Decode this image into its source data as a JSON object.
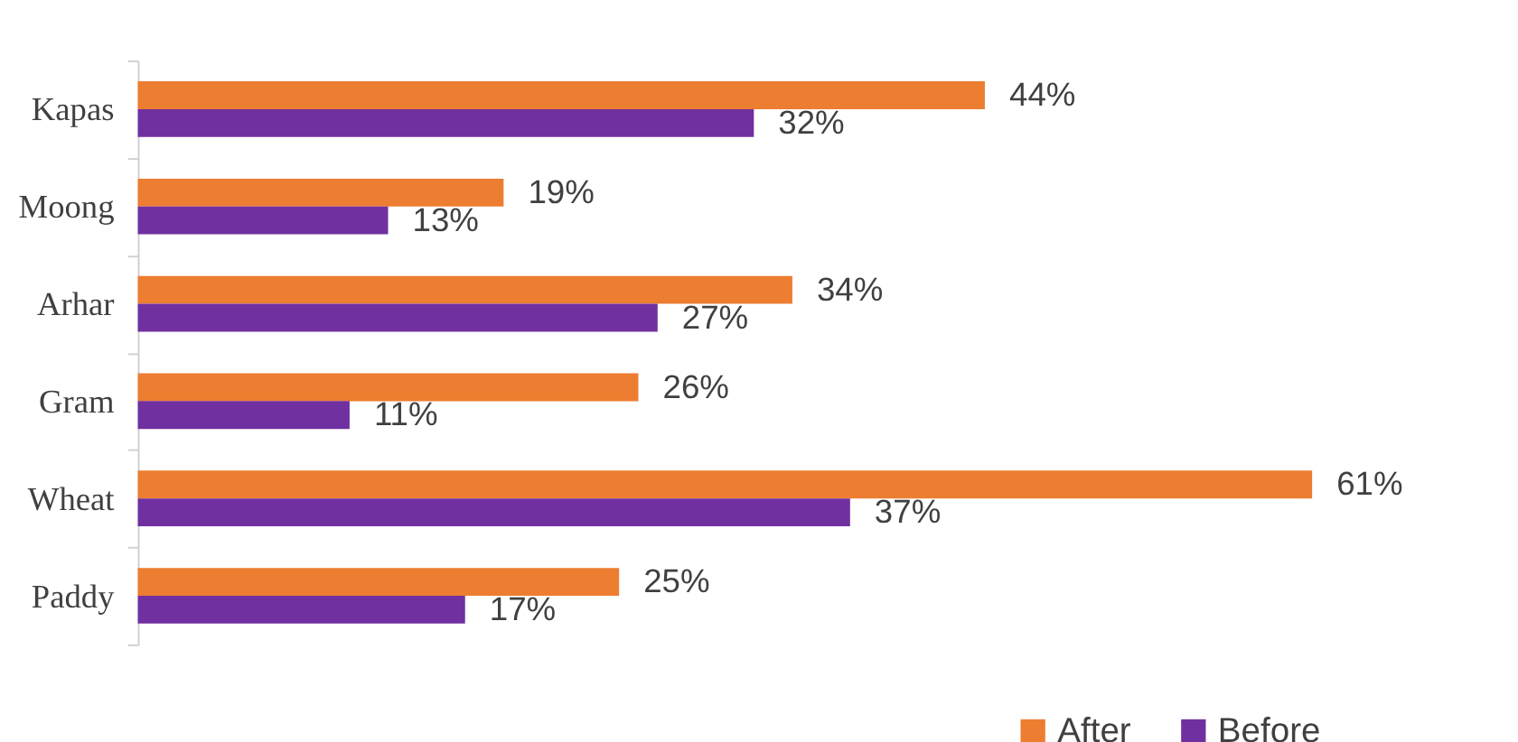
{
  "chart_data": {
    "type": "bar",
    "orientation": "horizontal",
    "categories": [
      "Kapas",
      "Moong",
      "Arhar",
      "Gram",
      "Wheat",
      "Paddy"
    ],
    "series": [
      {
        "name": "After",
        "color": "#ed7d31",
        "values": [
          44,
          19,
          34,
          26,
          61,
          25
        ],
        "value_labels": [
          "44%",
          "19%",
          "34%",
          "26%",
          "61%",
          "25%"
        ]
      },
      {
        "name": "Before",
        "color": "#7030a0",
        "values": [
          32,
          13,
          27,
          11,
          37,
          17
        ],
        "value_labels": [
          "32%",
          "13%",
          "27%",
          "11%",
          "37%",
          "17%"
        ]
      }
    ],
    "legend": "bottom right",
    "grid": false
  }
}
